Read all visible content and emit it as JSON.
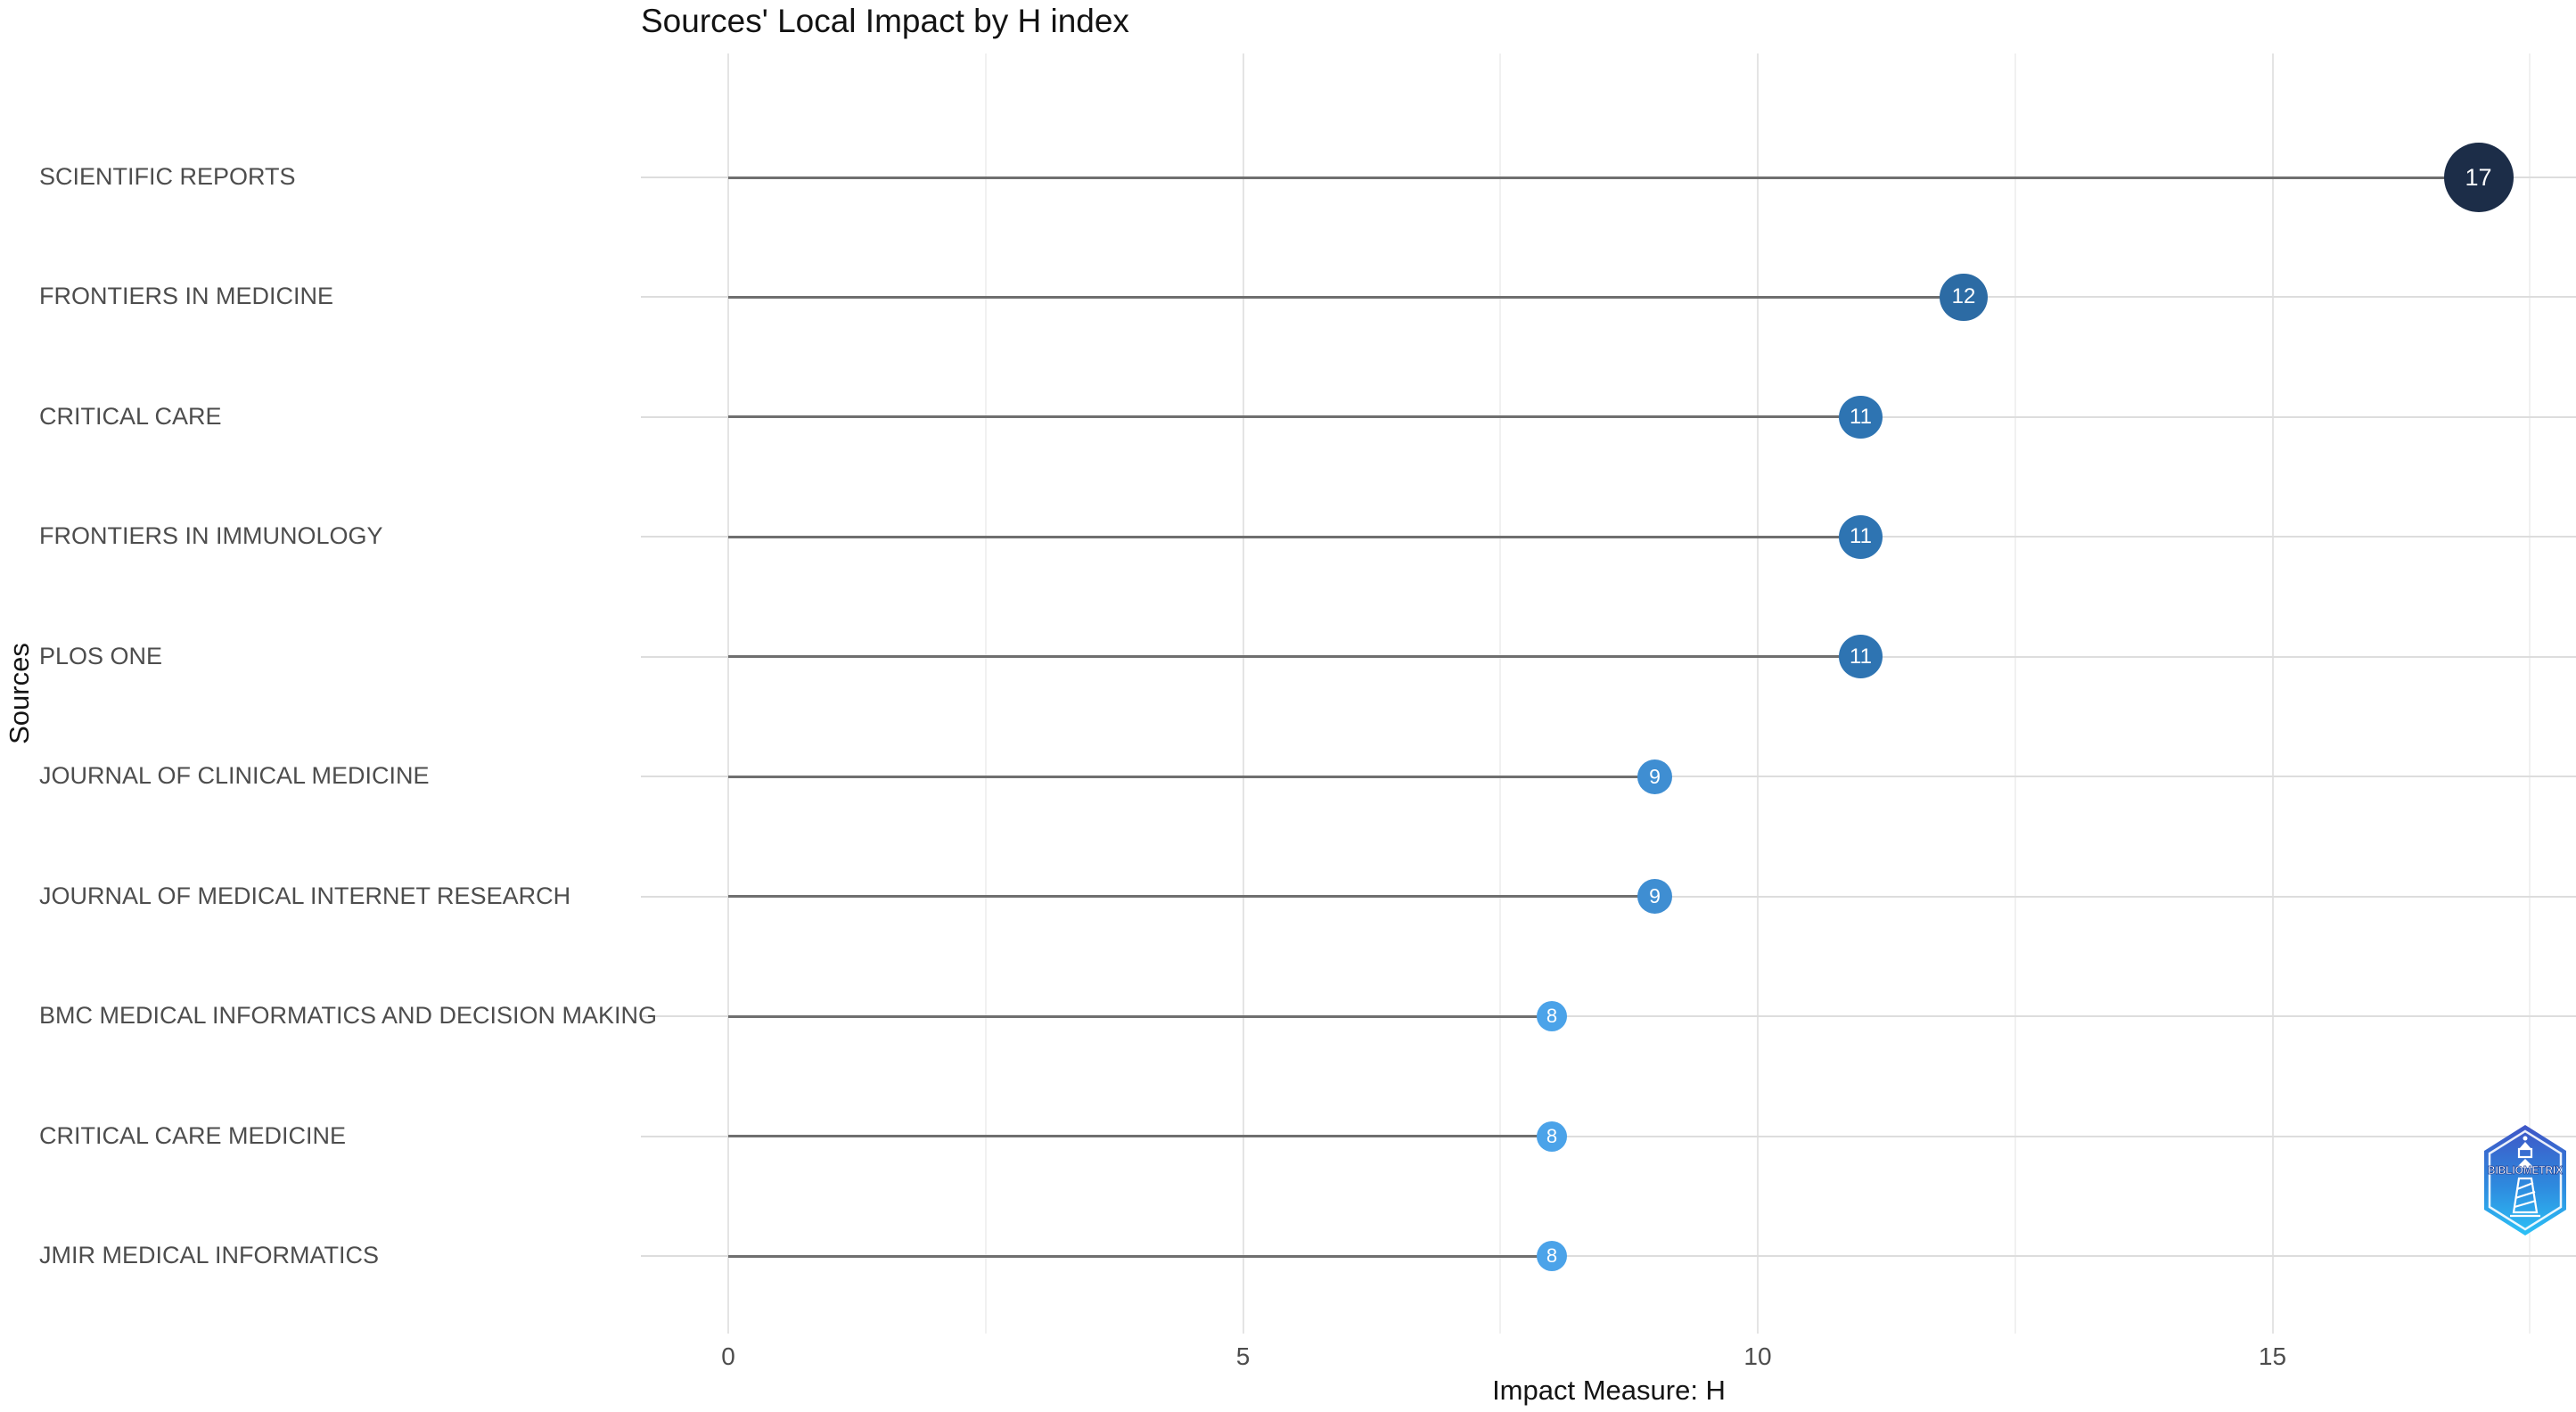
{
  "title": "Sources' Local Impact by H index",
  "axes": {
    "x_title": "Impact Measure: H",
    "y_title": "Sources",
    "x_tick_labels": [
      "0",
      "5",
      "10",
      "15"
    ]
  },
  "chart_data": {
    "type": "bar",
    "subtype": "horizontal-lollipop",
    "title": "Sources' Local Impact by H index",
    "xlabel": "Impact Measure: H",
    "ylabel": "Sources",
    "categories": [
      "SCIENTIFIC REPORTS",
      "FRONTIERS IN MEDICINE",
      "CRITICAL CARE",
      "FRONTIERS IN IMMUNOLOGY",
      "PLOS ONE",
      "JOURNAL OF CLINICAL MEDICINE",
      "JOURNAL OF MEDICAL INTERNET RESEARCH",
      "BMC MEDICAL INFORMATICS AND DECISION MAKING",
      "CRITICAL CARE MEDICINE",
      "JMIR MEDICAL INFORMATICS"
    ],
    "values": [
      17,
      12,
      11,
      11,
      11,
      9,
      9,
      8,
      8,
      8
    ],
    "data_labels": [
      "17",
      "12",
      "11",
      "11",
      "11",
      "9",
      "9",
      "8",
      "8",
      "8"
    ],
    "point_colors": [
      "#1c2d48",
      "#2c6ba4",
      "#2e74b2",
      "#2e74b2",
      "#2e74b2",
      "#3f8ed2",
      "#3f8ed2",
      "#4ba3e9",
      "#4ba3e9",
      "#4ba3e9"
    ],
    "xlim": [
      0,
      17.5
    ],
    "x_ticks_major": [
      0,
      5,
      10,
      15
    ],
    "x_ticks_minor": [
      2.5,
      7.5,
      12.5,
      17.5
    ],
    "grid": "on",
    "legend": "none",
    "stem_color": "#6f6f6f",
    "label_text_color": "#ffffff"
  },
  "logo": {
    "name": "bibliometrix-logo",
    "text": "BIBLIOMETRIX",
    "hex_top_color": "#3f55c6",
    "hex_bottom_color": "#2cc1f6",
    "accent_color": "#ffffff"
  }
}
